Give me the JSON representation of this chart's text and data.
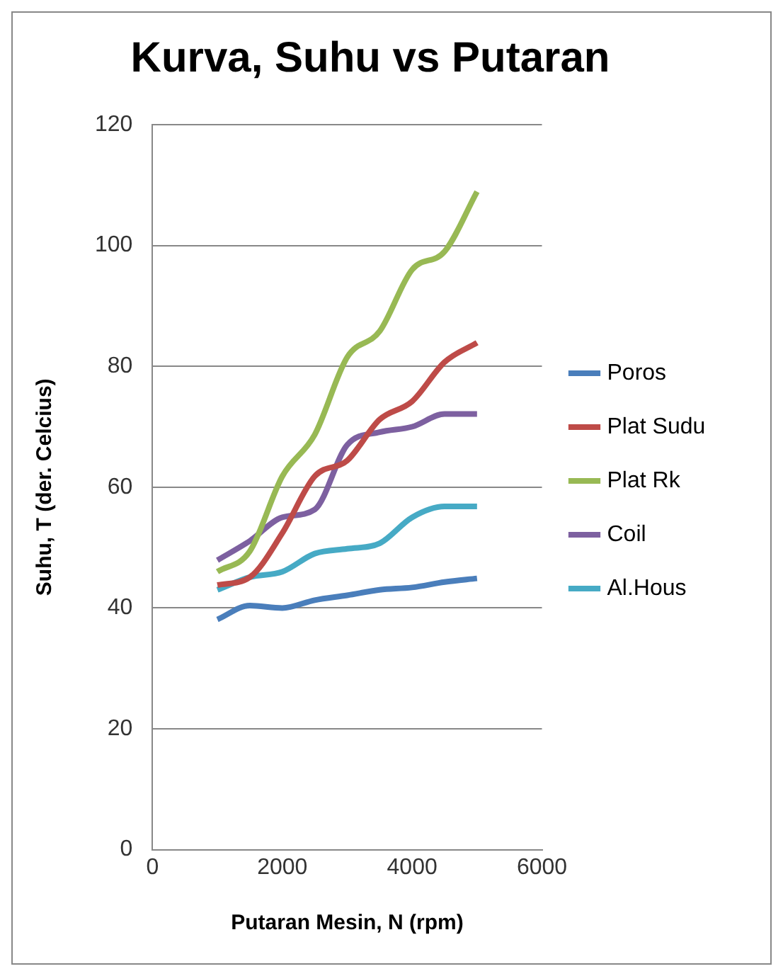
{
  "chart_data": {
    "type": "line",
    "title": "Kurva, Suhu vs Putaran",
    "xlabel": "Putaran Mesin, N (rpm)",
    "ylabel": "Suhu, T (der. Celcius)",
    "x": [
      1000,
      1500,
      2000,
      2500,
      3000,
      3500,
      4000,
      4500,
      5000
    ],
    "xlim": [
      0,
      6000
    ],
    "xticks": [
      0,
      2000,
      4000,
      6000
    ],
    "ylim": [
      0,
      120
    ],
    "yticks": [
      0,
      20,
      40,
      60,
      80,
      100,
      120
    ],
    "grid": "y",
    "legend": "right",
    "marker": "none",
    "series": [
      {
        "name": "Poros",
        "color": "#4a7ebb",
        "values": [
          38.1,
          40.4,
          40,
          41.3,
          42.1,
          43,
          43.4,
          44.3,
          44.9
        ]
      },
      {
        "name": "Plat Sudu",
        "color": "#be4b48",
        "values": [
          43.8,
          45.1,
          52.4,
          61.8,
          64.4,
          71.2,
          74.2,
          80.7,
          83.9
        ]
      },
      {
        "name": "Plat Rk",
        "color": "#98b954",
        "values": [
          46,
          49.4,
          61.8,
          68.7,
          81.5,
          85.8,
          96,
          99,
          108.9
        ]
      },
      {
        "name": "Coil",
        "color": "#7d60a0",
        "values": [
          47.9,
          51.1,
          55,
          56.3,
          67,
          69.1,
          70,
          72.1,
          72.1
        ]
      },
      {
        "name": "Al.Hous",
        "color": "#46aac5",
        "values": [
          43,
          45.1,
          46,
          49,
          49.8,
          50.7,
          55,
          56.8,
          56.8
        ]
      }
    ]
  }
}
